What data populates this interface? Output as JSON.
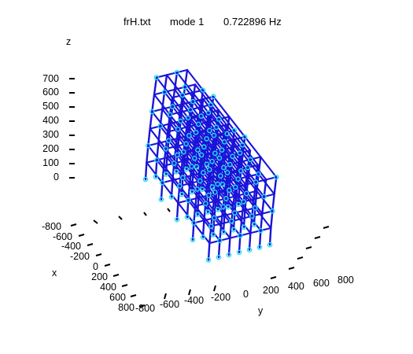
{
  "title": {
    "file": "frH.txt",
    "mode": "mode 1",
    "freq": "0.722896 Hz"
  },
  "axes": {
    "z_label": "z",
    "x_label": "x",
    "y_label": "y",
    "z_ticks": [
      "700",
      "600",
      "500",
      "400",
      "300",
      "200",
      "100",
      "0"
    ],
    "x_ticks": [
      "-800",
      "-600",
      "-400",
      "-200",
      "0",
      "200",
      "400",
      "600",
      "800"
    ],
    "y_ticks": [
      "-800",
      "-600",
      "-400",
      "-200",
      "0",
      "200",
      "400",
      "600",
      "800"
    ]
  },
  "colors": {
    "frame": "#1a14d8",
    "nodes": "#22e0f0",
    "ticks": "#000000"
  }
}
